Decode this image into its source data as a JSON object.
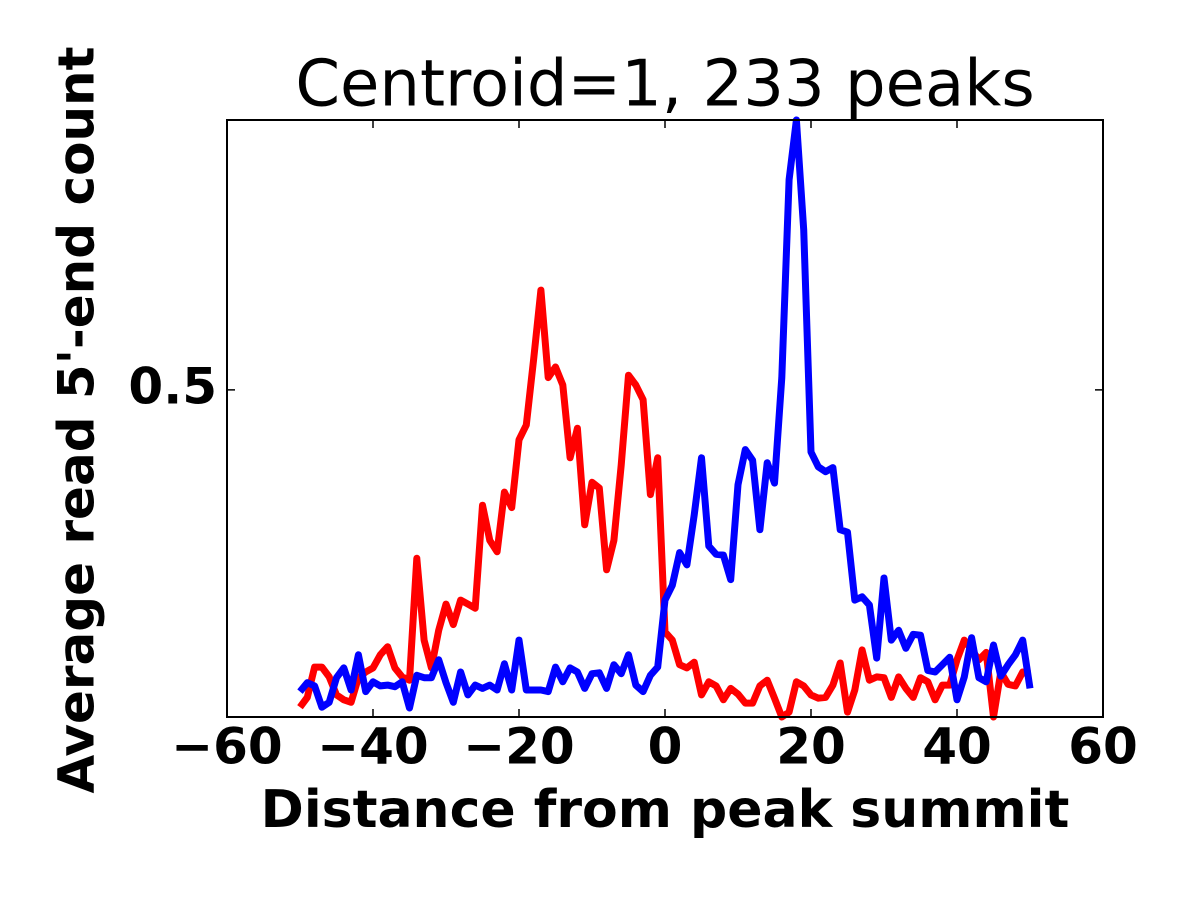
{
  "chart_data": {
    "type": "line",
    "title": "Centroid=1, 233 peaks",
    "xlabel": "Distance from peak summit",
    "ylabel": "Average read 5'-end count",
    "x": [
      -50,
      -49,
      -48,
      -47,
      -46,
      -45,
      -44,
      -43,
      -42,
      -41,
      -40,
      -39,
      -38,
      -37,
      -36,
      -35,
      -34,
      -33,
      -32,
      -31,
      -30,
      -29,
      -28,
      -27,
      -26,
      -25,
      -24,
      -23,
      -22,
      -21,
      -20,
      -19,
      -18,
      -17,
      -16,
      -15,
      -14,
      -13,
      -12,
      -11,
      -10,
      -9,
      -8,
      -7,
      -6,
      -5,
      -4,
      -3,
      -2,
      -1,
      0,
      1,
      2,
      3,
      4,
      5,
      6,
      7,
      8,
      9,
      10,
      11,
      12,
      13,
      14,
      15,
      16,
      17,
      18,
      19,
      20,
      21,
      22,
      23,
      24,
      25,
      26,
      27,
      28,
      29,
      30,
      31,
      32,
      33,
      34,
      35,
      36,
      37,
      38,
      39,
      40,
      41,
      42,
      43,
      44,
      45,
      46,
      47,
      48,
      49,
      50
    ],
    "series": [
      {
        "color": "#ff0000",
        "values": [
          0.112,
          0.124,
          0.161,
          0.161,
          0.149,
          0.127,
          0.121,
          0.118,
          0.148,
          0.155,
          0.16,
          0.176,
          0.186,
          0.16,
          0.149,
          0.145,
          0.294,
          0.194,
          0.16,
          0.206,
          0.238,
          0.213,
          0.243,
          0.238,
          0.233,
          0.359,
          0.316,
          0.302,
          0.375,
          0.356,
          0.439,
          0.457,
          0.537,
          0.622,
          0.515,
          0.528,
          0.506,
          0.417,
          0.453,
          0.335,
          0.387,
          0.38,
          0.28,
          0.316,
          0.408,
          0.518,
          0.506,
          0.488,
          0.372,
          0.417,
          0.204,
          0.194,
          0.164,
          0.16,
          0.167,
          0.127,
          0.143,
          0.138,
          0.121,
          0.135,
          0.128,
          0.117,
          0.117,
          0.138,
          0.145,
          0.123,
          0.1,
          0.106,
          0.143,
          0.138,
          0.127,
          0.123,
          0.124,
          0.139,
          0.166,
          0.106,
          0.133,
          0.182,
          0.145,
          0.149,
          0.148,
          0.124,
          0.149,
          0.135,
          0.124,
          0.148,
          0.143,
          0.121,
          0.139,
          0.139,
          0.17,
          0.194,
          0.182,
          0.17,
          0.179,
          0.1,
          0.155,
          0.14,
          0.138,
          0.155,
          0.153
        ]
      },
      {
        "color": "#0000ff",
        "values": [
          0.131,
          0.142,
          0.138,
          0.112,
          0.118,
          0.148,
          0.16,
          0.133,
          0.176,
          0.131,
          0.143,
          0.138,
          0.139,
          0.137,
          0.143,
          0.111,
          0.151,
          0.148,
          0.148,
          0.17,
          0.142,
          0.118,
          0.155,
          0.127,
          0.139,
          0.135,
          0.139,
          0.133,
          0.165,
          0.133,
          0.194,
          0.133,
          0.133,
          0.133,
          0.131,
          0.161,
          0.143,
          0.16,
          0.155,
          0.135,
          0.153,
          0.154,
          0.135,
          0.164,
          0.153,
          0.176,
          0.139,
          0.131,
          0.151,
          0.161,
          0.243,
          0.261,
          0.301,
          0.286,
          0.347,
          0.417,
          0.309,
          0.299,
          0.298,
          0.268,
          0.384,
          0.427,
          0.414,
          0.329,
          0.411,
          0.386,
          0.515,
          0.757,
          0.83,
          0.696,
          0.424,
          0.406,
          0.4,
          0.405,
          0.329,
          0.326,
          0.243,
          0.247,
          0.237,
          0.172,
          0.27,
          0.194,
          0.206,
          0.184,
          0.201,
          0.2,
          0.157,
          0.155,
          0.164,
          0.173,
          0.121,
          0.149,
          0.197,
          0.148,
          0.143,
          0.188,
          0.15,
          0.164,
          0.176,
          0.194,
          0.135
        ]
      }
    ],
    "xlim": [
      -60,
      60
    ],
    "xticks": [
      {
        "value": -60,
        "label": "−60"
      },
      {
        "value": -40,
        "label": "−40"
      },
      {
        "value": -20,
        "label": "−20"
      },
      0,
      20,
      40,
      60
    ],
    "ylim": [
      0.1,
      0.83
    ],
    "yticks": [
      0.5
    ]
  }
}
